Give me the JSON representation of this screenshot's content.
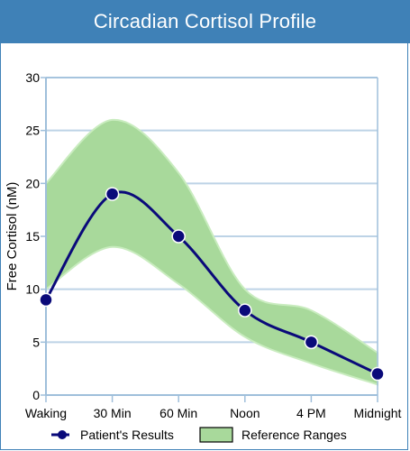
{
  "header": {
    "title": "Circadian Cortisol Profile"
  },
  "colors": {
    "header_bg": "#3f81b7",
    "series_line": "#0a0a7a",
    "band_fill": "#a8d99b",
    "band_edge": "#c9ecbf",
    "grid": "#bdd3e6",
    "plot_border": "#9fbfdb"
  },
  "chart_data": {
    "type": "line",
    "title": "Circadian Cortisol Profile",
    "xlabel": "",
    "ylabel": "Free Cortisol (nM)",
    "categories": [
      "Waking",
      "30 Min",
      "60 Min",
      "Noon",
      "4 PM",
      "Midnight"
    ],
    "ylim": [
      0,
      30
    ],
    "yticks": [
      "0",
      "5",
      "10",
      "15",
      "20",
      "25",
      "30"
    ],
    "grid": true,
    "legend_position": "bottom",
    "series": [
      {
        "name": "Patient's Results",
        "type": "line",
        "values": [
          9,
          19,
          15,
          8,
          5,
          2
        ]
      },
      {
        "name": "Reference Ranges",
        "type": "area-range",
        "lower": [
          10,
          14,
          10.5,
          5.5,
          3,
          1
        ],
        "upper": [
          20,
          26,
          21,
          10,
          8,
          4
        ]
      }
    ]
  }
}
